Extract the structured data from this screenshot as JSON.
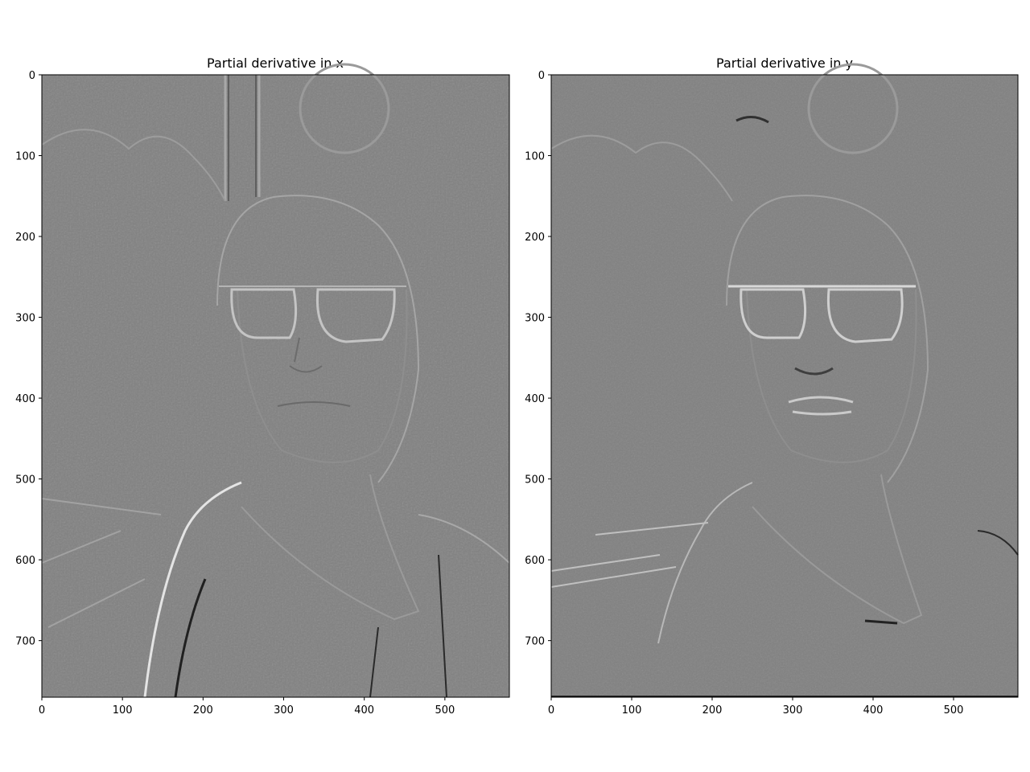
{
  "chart_data": [
    {
      "type": "heatmap",
      "title": "Partial derivative in x",
      "xlim": [
        0,
        580
      ],
      "ylim": [
        770,
        0
      ],
      "xticks": [
        0,
        100,
        200,
        300,
        400,
        500
      ],
      "yticks": [
        0,
        100,
        200,
        300,
        400,
        500,
        600,
        700
      ],
      "grid": false,
      "colormap": "gray",
      "base_color": "#808080"
    },
    {
      "type": "heatmap",
      "title": "Partial derivative in y",
      "xlim": [
        0,
        580
      ],
      "ylim": [
        770,
        0
      ],
      "xticks": [
        0,
        100,
        200,
        300,
        400,
        500
      ],
      "yticks": [
        0,
        100,
        200,
        300,
        400,
        500,
        600,
        700
      ],
      "grid": false,
      "colormap": "gray",
      "base_color": "#808080"
    }
  ]
}
